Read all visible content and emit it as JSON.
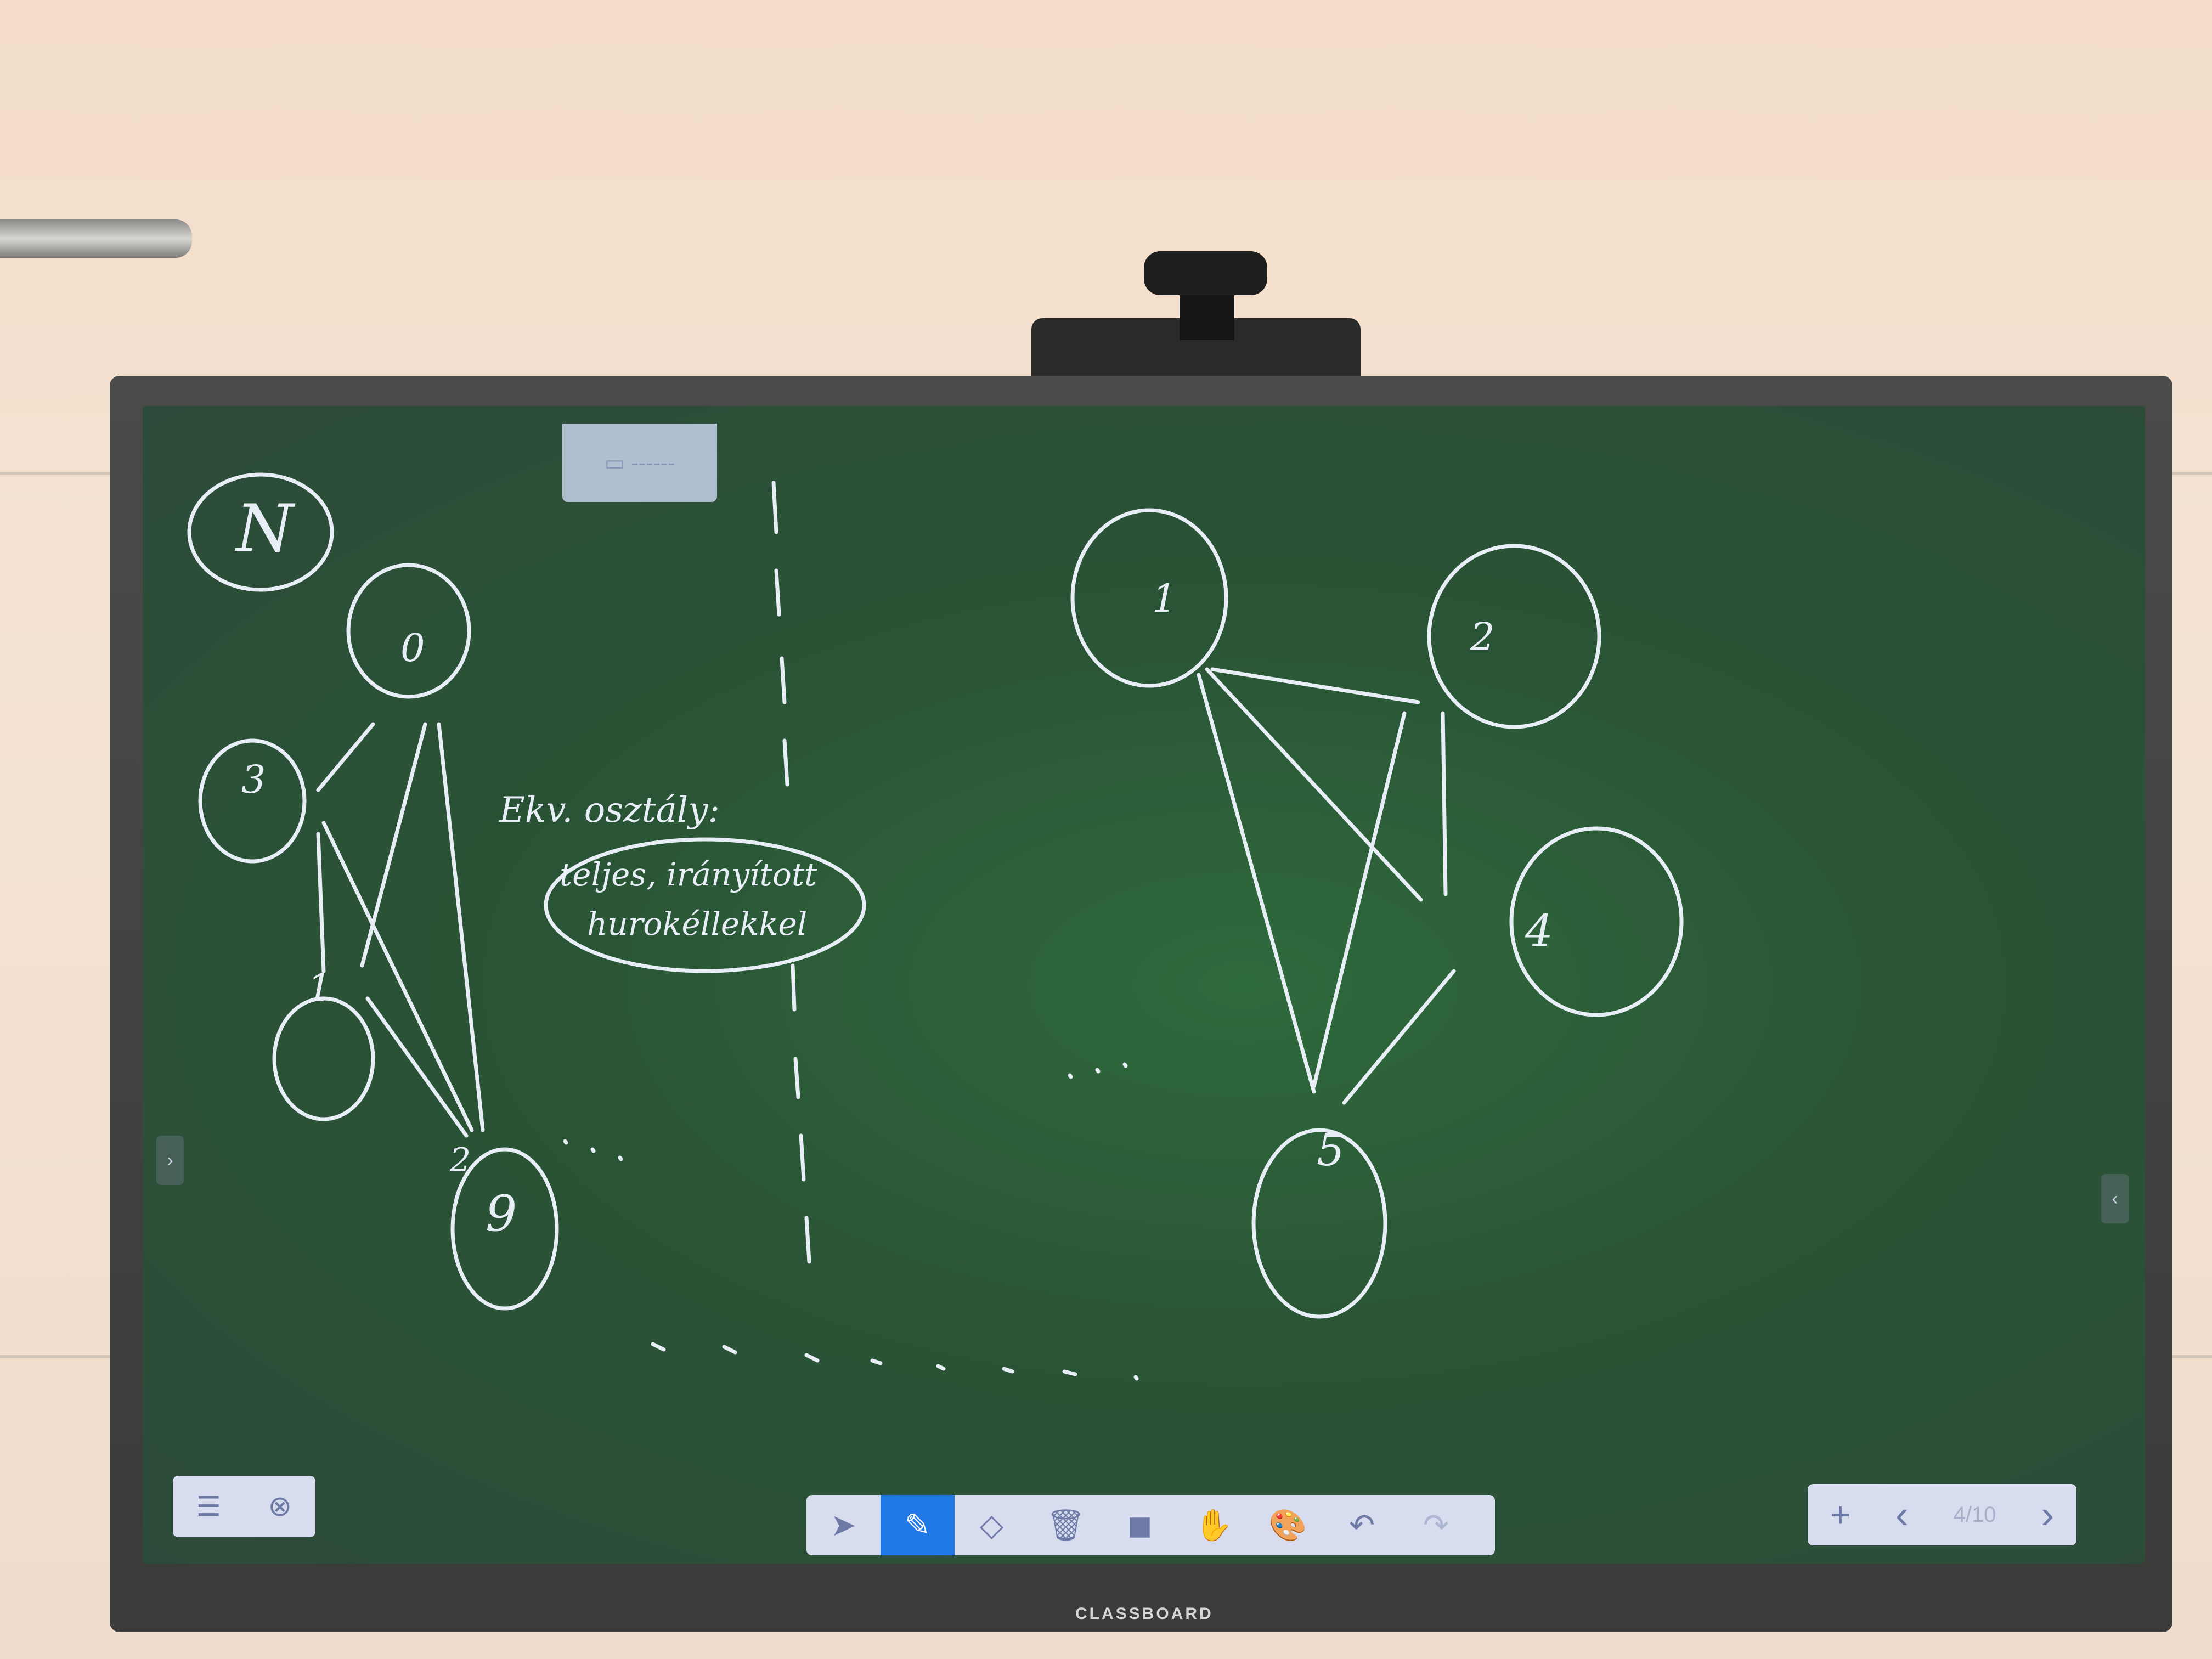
{
  "toolbar_left": {
    "menu_icon": "menu-icon",
    "close_icon": "close-icon"
  },
  "toolbar_center": {
    "tools": [
      {
        "name": "select-tool",
        "icon": "cursor-icon",
        "glyph": "➤",
        "active": false
      },
      {
        "name": "pen-tool",
        "icon": "pen-icon",
        "glyph": "✎",
        "active": true
      },
      {
        "name": "eraser-tool",
        "icon": "eraser-icon",
        "glyph": "◇",
        "active": false
      },
      {
        "name": "delete-tool",
        "icon": "trash-icon",
        "glyph": "🗑",
        "active": false
      },
      {
        "name": "shapes-tool",
        "icon": "shapes-icon",
        "glyph": "◼",
        "active": false
      },
      {
        "name": "pan-tool",
        "icon": "hand-icon",
        "glyph": "✋",
        "active": false
      },
      {
        "name": "color-tool",
        "icon": "palette-icon",
        "glyph": "🎨",
        "active": false
      },
      {
        "name": "undo-tool",
        "icon": "undo-icon",
        "glyph": "↶",
        "active": false
      },
      {
        "name": "redo-tool",
        "icon": "redo-icon",
        "glyph": "↷",
        "active": false
      }
    ]
  },
  "toolbar_right": {
    "add_page_glyph": "+",
    "prev_glyph": "‹",
    "page_indicator": "4/10",
    "next_glyph": "›"
  },
  "handwriting": {
    "top_left_label": "N",
    "note_line1": "Ekv. osztály:",
    "note_line2": "teljes, irányított",
    "note_line3": "hurokéllekkel",
    "nodes_left": [
      "0",
      "3",
      "1",
      "2",
      "9"
    ],
    "nodes_right": [
      "1",
      "2",
      "4",
      "5"
    ]
  },
  "brand": "CLASSBOARD",
  "colors": {
    "screen_green": "#2a5436",
    "ink": "#e8eef6",
    "toolbar_bg": "#d7dcee",
    "active_tool": "#1f78e6"
  }
}
